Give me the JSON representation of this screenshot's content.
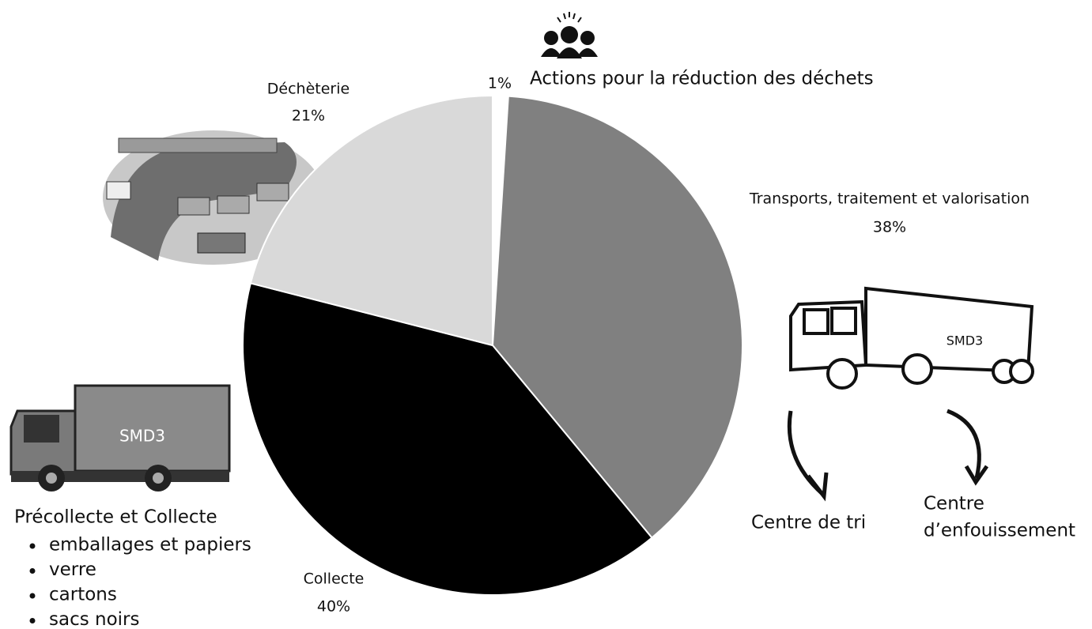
{
  "chart_data": {
    "type": "pie",
    "categories": [
      "Actions pour la réduction des déchets",
      "Transports, traitement et valorisation",
      "Collecte",
      "Déchèterie"
    ],
    "values": [
      1,
      38,
      40,
      21
    ],
    "value_labels": [
      "1%",
      "38%",
      "40%",
      "21%"
    ],
    "colors": [
      "#ffffff",
      "#808080",
      "#000000",
      "#d9d9d9"
    ],
    "annotations": {
      "collection_title": "Précollecte et Collecte",
      "collection_items": [
        "emballages et papiers",
        "verre",
        "cartons",
        "sacs noirs"
      ],
      "destinations": [
        "Centre de tri",
        "Centre",
        "d’enfouissement"
      ]
    }
  }
}
